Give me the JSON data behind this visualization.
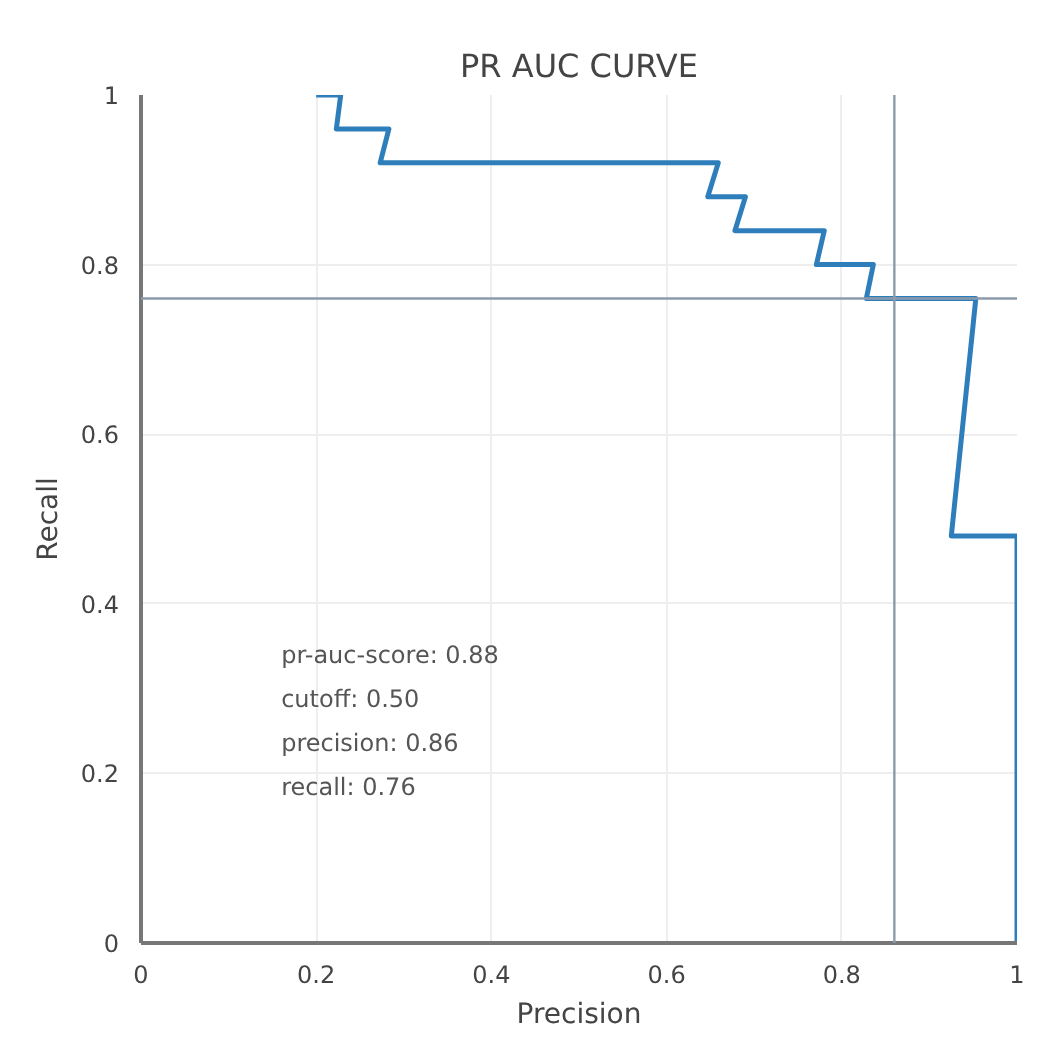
{
  "chart_data": {
    "type": "line",
    "title": "PR AUC CURVE",
    "xlabel": "Precision",
    "ylabel": "Recall",
    "x": [
      0.2,
      0.228,
      0.223,
      0.283,
      0.273,
      0.659,
      0.647,
      0.69,
      0.678,
      0.78,
      0.771,
      0.836,
      0.828,
      0.953,
      0.925,
      1.0,
      1.0
    ],
    "series": [
      {
        "color": "#2f7ebc",
        "values": [
          1,
          1,
          0.96,
          0.96,
          0.92,
          0.92,
          0.88,
          0.88,
          0.84,
          0.84,
          0.8,
          0.8,
          0.76,
          0.76,
          0.48,
          0.48,
          0
        ]
      }
    ],
    "xlim": [
      0,
      1
    ],
    "ylim": [
      0,
      1
    ],
    "xticks": [
      0,
      0.2,
      0.4,
      0.6,
      0.8,
      1
    ],
    "yticks": [
      0,
      0.2,
      0.4,
      0.6,
      0.8,
      1
    ],
    "ref_lines": [
      {
        "axis": "x",
        "value": 0.86,
        "color": "#8c9bab"
      },
      {
        "axis": "y",
        "value": 0.76,
        "color": "#8c9bab"
      }
    ],
    "annotations": [
      "pr-auc-score: 0.88",
      "cutoff: 0.50",
      "precision: 0.86",
      "recall: 0.76"
    ],
    "grid": true,
    "marker": "none",
    "line_style": "solid"
  }
}
